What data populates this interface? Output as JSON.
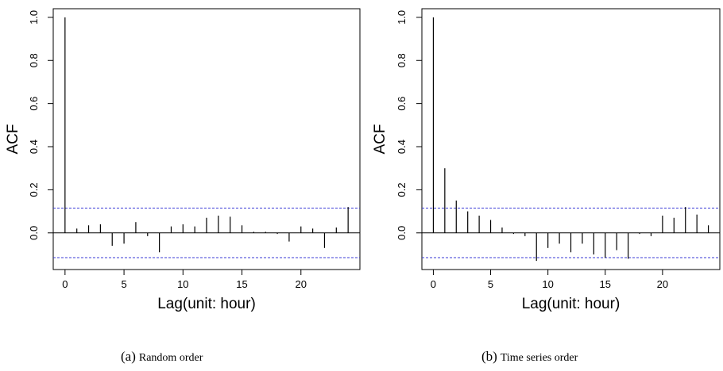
{
  "chart_data": [
    {
      "type": "bar",
      "panel": "a",
      "caption_letter": "(a)",
      "caption_text": "Random order",
      "xlabel": "Lag(unit: hour)",
      "ylabel": "ACF",
      "xlim": [
        -1,
        25
      ],
      "ylim": [
        -0.17,
        1.04
      ],
      "xticks": [
        0,
        5,
        10,
        15,
        20
      ],
      "yticks": [
        0.0,
        0.2,
        0.4,
        0.6,
        0.8,
        1.0
      ],
      "conf_bounds": [
        0.115,
        -0.115
      ],
      "lags": [
        0,
        1,
        2,
        3,
        4,
        5,
        6,
        7,
        8,
        9,
        10,
        11,
        12,
        13,
        14,
        15,
        16,
        17,
        18,
        19,
        20,
        21,
        22,
        23,
        24
      ],
      "values": [
        1.0,
        0.02,
        0.035,
        0.04,
        -0.06,
        -0.05,
        0.05,
        -0.015,
        -0.09,
        0.03,
        0.04,
        0.03,
        0.07,
        0.08,
        0.075,
        0.035,
        0.005,
        0.005,
        -0.005,
        -0.04,
        0.03,
        0.02,
        -0.07,
        0.025,
        0.12
      ],
      "colors": {
        "bars": "#000000",
        "conf": "#3b3bd6",
        "frame": "#000000"
      }
    },
    {
      "type": "bar",
      "panel": "b",
      "caption_letter": "(b)",
      "caption_text": "Time series order",
      "xlabel": "Lag(unit: hour)",
      "ylabel": "ACF",
      "xlim": [
        -1,
        25
      ],
      "ylim": [
        -0.17,
        1.04
      ],
      "xticks": [
        0,
        5,
        10,
        15,
        20
      ],
      "yticks": [
        0.0,
        0.2,
        0.4,
        0.6,
        0.8,
        1.0
      ],
      "conf_bounds": [
        0.115,
        -0.115
      ],
      "lags": [
        0,
        1,
        2,
        3,
        4,
        5,
        6,
        7,
        8,
        9,
        10,
        11,
        12,
        13,
        14,
        15,
        16,
        17,
        18,
        19,
        20,
        21,
        22,
        23,
        24
      ],
      "values": [
        1.0,
        0.3,
        0.15,
        0.1,
        0.08,
        0.06,
        0.025,
        -0.005,
        -0.015,
        -0.13,
        -0.07,
        -0.05,
        -0.09,
        -0.05,
        -0.1,
        -0.115,
        -0.08,
        -0.12,
        -0.005,
        -0.015,
        0.08,
        0.07,
        0.12,
        0.085,
        0.035
      ],
      "colors": {
        "bars": "#000000",
        "conf": "#3b3bd6",
        "frame": "#000000"
      }
    }
  ]
}
